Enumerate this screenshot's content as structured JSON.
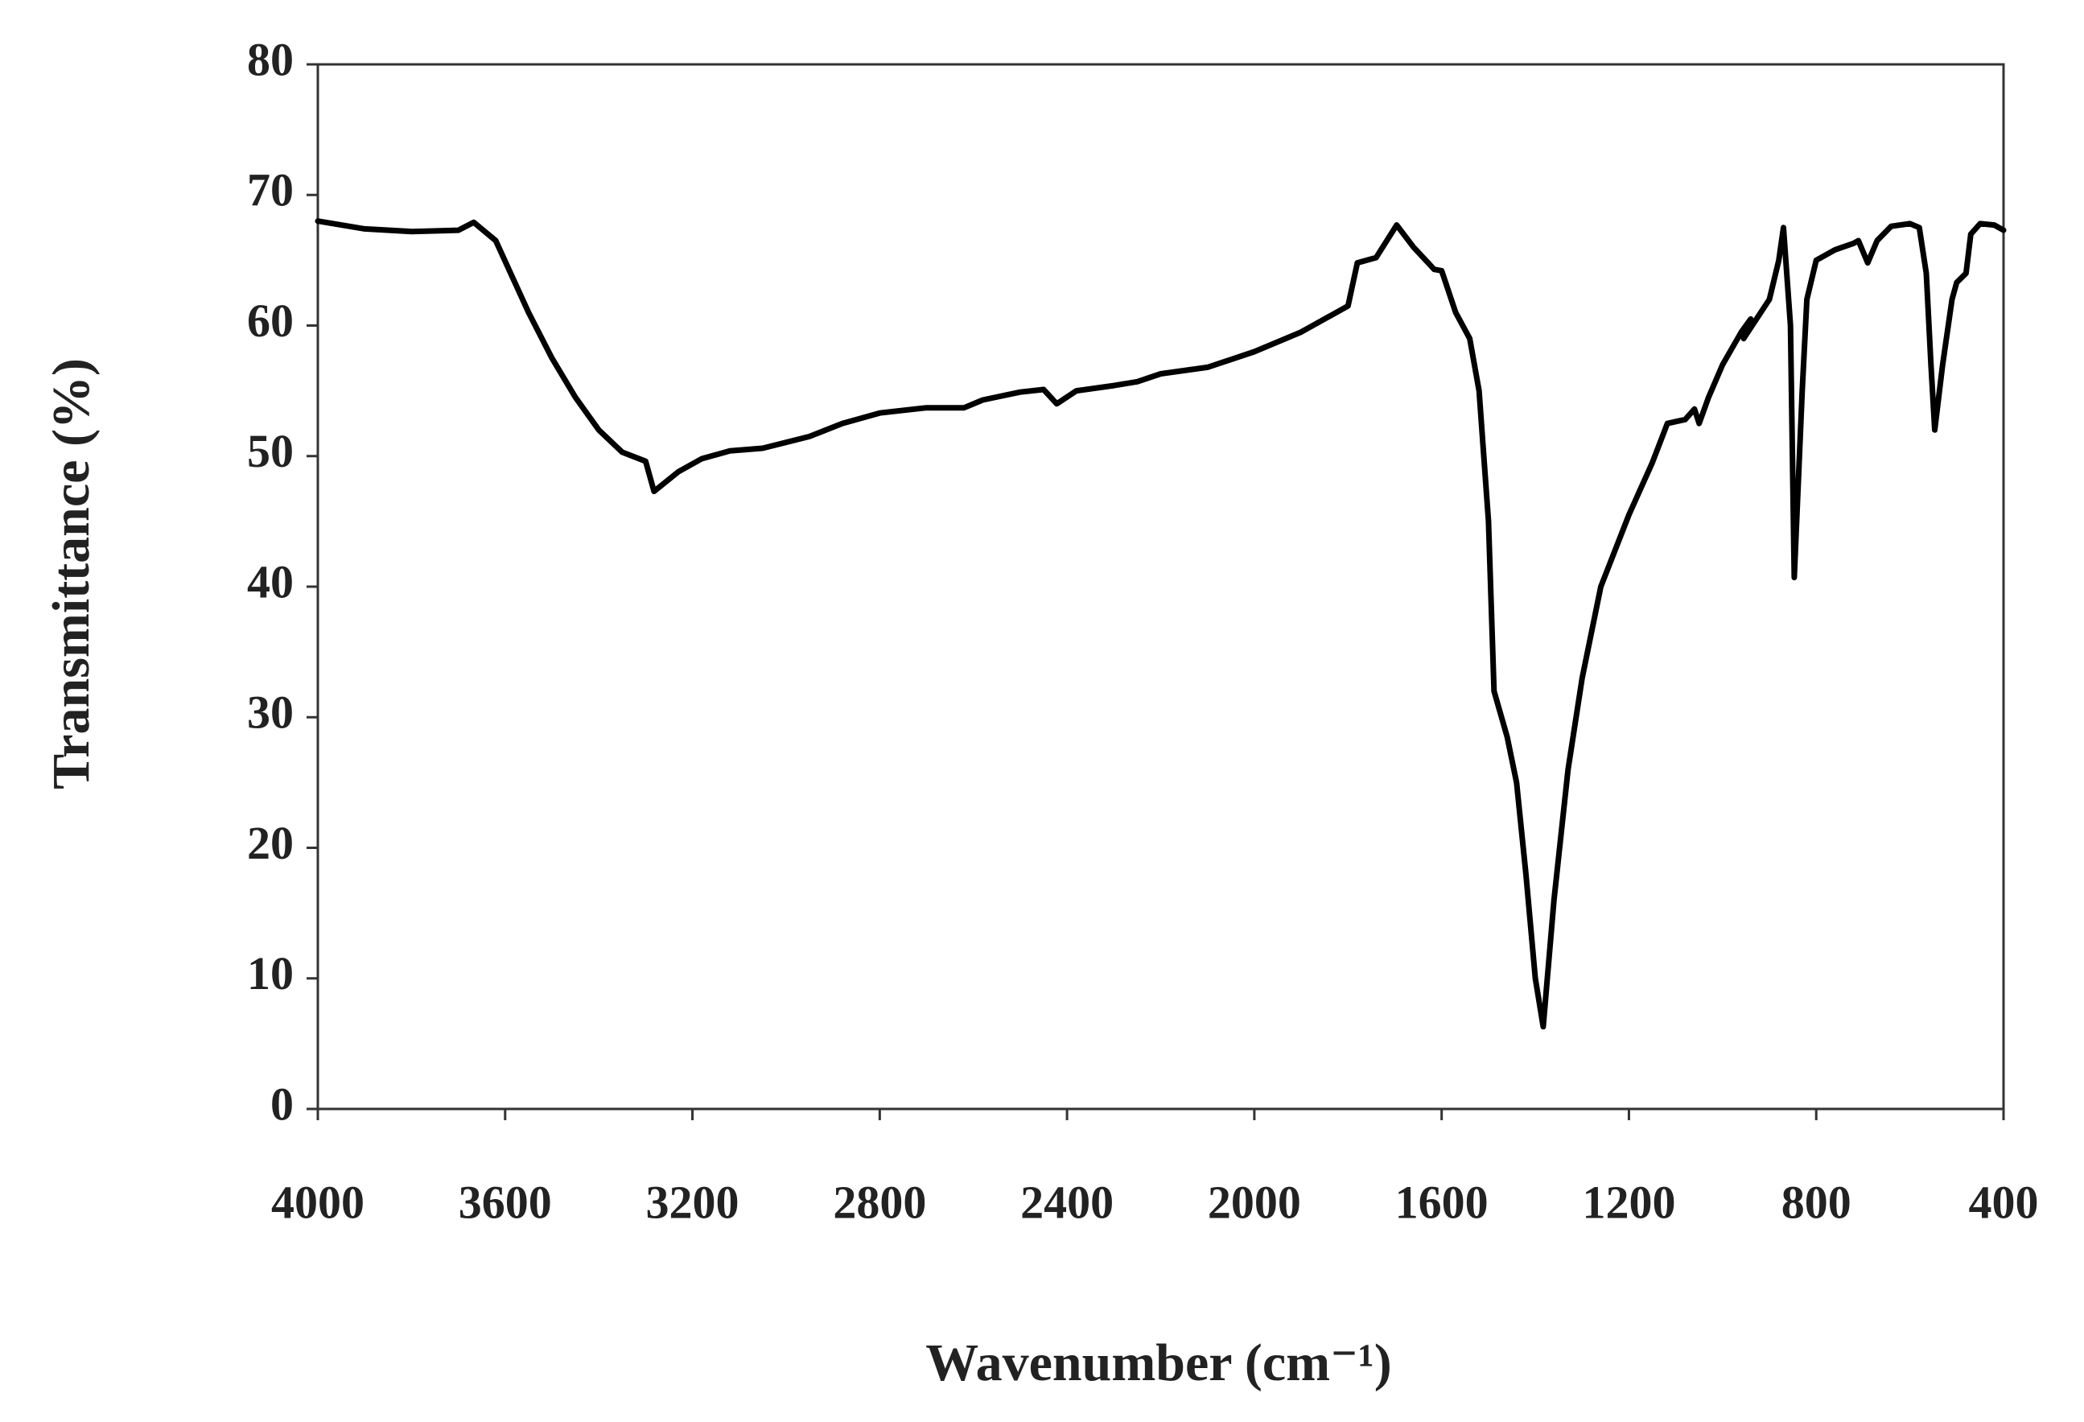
{
  "chart_data": {
    "type": "line",
    "x_label": "Wavenumber (cm⁻¹)",
    "y_label": "Transmittance (%)",
    "x": [
      4000,
      3900,
      3800,
      3700,
      3667,
      3620,
      3550,
      3500,
      3450,
      3400,
      3350,
      3300,
      3282,
      3230,
      3180,
      3120,
      3050,
      2950,
      2880,
      2800,
      2700,
      2620,
      2580,
      2500,
      2450,
      2422,
      2380,
      2300,
      2250,
      2200,
      2100,
      2000,
      1900,
      1800,
      1780,
      1740,
      1696,
      1660,
      1616,
      1600,
      1570,
      1540,
      1520,
      1500,
      1488,
      1460,
      1440,
      1420,
      1400,
      1383,
      1360,
      1330,
      1300,
      1260,
      1200,
      1150,
      1118,
      1080,
      1060,
      1050,
      1030,
      1000,
      960,
      940,
      955,
      900,
      880,
      870,
      855,
      847,
      830,
      820,
      800,
      760,
      720,
      710,
      690,
      670,
      640,
      600,
      580,
      565,
      555,
      547,
      530,
      510,
      500,
      480,
      470,
      450,
      420,
      400
    ],
    "values": [
      68,
      67.4,
      67.2,
      67.3,
      67.9,
      66.5,
      61,
      57.5,
      54.5,
      52,
      50.3,
      49.6,
      47.3,
      48.8,
      49.8,
      50.4,
      50.6,
      51.5,
      52.5,
      53.3,
      53.7,
      53.7,
      54.3,
      54.9,
      55.1,
      54.0,
      55.0,
      55.4,
      55.7,
      56.3,
      56.8,
      58.0,
      59.5,
      61.5,
      64.8,
      65.2,
      67.7,
      66,
      64.3,
      64.2,
      61,
      59,
      55,
      45,
      32,
      28.5,
      25,
      18,
      10,
      6.3,
      16,
      26,
      33,
      40,
      45.5,
      49.5,
      52.5,
      52.8,
      53.6,
      52.5,
      54.5,
      57,
      59.5,
      60.5,
      59,
      62,
      65,
      67.5,
      60,
      40.7,
      55,
      62,
      65,
      65.8,
      66.3,
      66.5,
      64.8,
      66.5,
      67.6,
      67.8,
      67.5,
      64,
      57,
      52,
      57,
      62,
      63.3,
      64,
      67,
      67.8,
      67.7,
      67.3
    ],
    "color": "#000000",
    "xlim": [
      4000,
      400
    ],
    "xticks": [
      4000,
      3600,
      3200,
      2800,
      2400,
      2000,
      1600,
      1200,
      800,
      400
    ],
    "ylim": [
      0,
      80
    ],
    "yticks": [
      0,
      10,
      20,
      30,
      40,
      50,
      60,
      70,
      80
    ],
    "grid": false
  }
}
